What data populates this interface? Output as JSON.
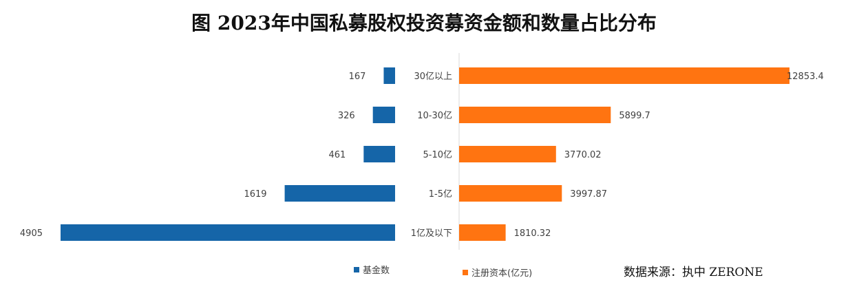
{
  "title": "图 2023年中国私募股权投资募资金额和数量占比分布",
  "source": "数据来源：执中 ZERONE",
  "colors": {
    "left": "#1565A8",
    "right": "#FF7411"
  },
  "chart_data": {
    "type": "bar",
    "orientation": "horizontal-butterfly",
    "categories": [
      "30亿以上",
      "10-30亿",
      "5-10亿",
      "1-5亿",
      "1亿及以下"
    ],
    "series": [
      {
        "name": "基金数",
        "side": "left",
        "values": [
          167,
          326,
          461,
          1619,
          4905
        ]
      },
      {
        "name": "注册资本(亿元)",
        "side": "right",
        "values": [
          12853.4,
          5899.7,
          3770.02,
          3997.87,
          1810.32
        ]
      }
    ],
    "value_labels": {
      "left": [
        "167",
        "326",
        "461",
        "1619",
        "4905"
      ],
      "right": [
        "12853.4",
        "5899.7",
        "3770.02",
        "3997.87",
        "1810.32"
      ]
    },
    "grid": false,
    "legend_position": "bottom"
  }
}
